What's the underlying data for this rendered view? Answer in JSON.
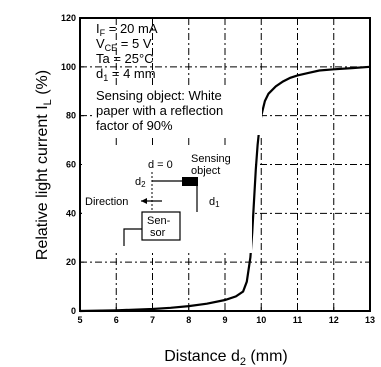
{
  "chart_data": {
    "type": "line",
    "title": "",
    "xlabel": "Distance d",
    "xlabel_sub": "2",
    "xlabel_unit": " (mm)",
    "ylabel": "Relative light current  I",
    "ylabel_sub": "L",
    "ylabel_unit": " (%)",
    "xlim": [
      5,
      13
    ],
    "ylim": [
      0,
      120
    ],
    "x_ticks": [
      "5",
      "6",
      "7",
      "8",
      "9",
      "10",
      "11",
      "12",
      "13"
    ],
    "y_ticks": [
      "0",
      "20",
      "40",
      "60",
      "80",
      "100",
      "120"
    ],
    "grid": true,
    "series": [
      {
        "x": [
          5.0,
          6.0,
          7.0,
          7.5,
          8.0,
          8.5,
          9.0,
          9.3,
          9.5,
          9.6,
          9.7,
          9.75,
          9.8,
          9.85,
          9.9,
          9.95,
          10.0,
          10.05,
          10.1,
          10.2,
          10.4,
          10.6,
          10.8,
          11.0,
          11.3,
          11.6,
          12.0,
          12.5,
          13.0
        ],
        "y": [
          0,
          0.3,
          0.8,
          1.3,
          2,
          3,
          4.5,
          6,
          8,
          12,
          22,
          32,
          45,
          58,
          68,
          75,
          80,
          83,
          86,
          89,
          92,
          94,
          95.5,
          96.5,
          97.5,
          98.5,
          99,
          99.5,
          100
        ]
      }
    ],
    "conditions": [
      {
        "pre": "I",
        "sub": "F",
        "post": " = 20 mA"
      },
      {
        "pre": "V",
        "sub": "CE",
        "post": " = 5 V"
      },
      {
        "pre": "Ta = 25°C",
        "sub": "",
        "post": ""
      },
      {
        "pre": "d",
        "sub": "1",
        "post": " = 4 mm"
      }
    ],
    "annotation_lines": [
      "Sensing object: White",
      "paper with a reflection",
      "factor of 90%"
    ],
    "inset": {
      "d0_label": "d = 0",
      "sensing_object_lines": [
        "Sensing",
        "object"
      ],
      "d2": "d",
      "d2_sub": "2",
      "d1": "d",
      "d1_sub": "1",
      "direction_label": "Direction",
      "sensor_lines": [
        "Sen-",
        "sor"
      ]
    }
  }
}
